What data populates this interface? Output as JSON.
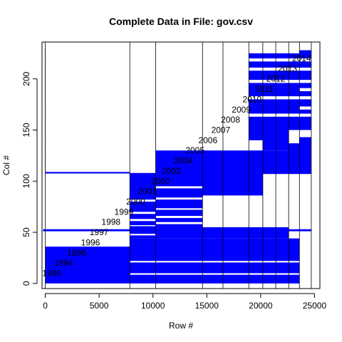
{
  "chart_data": {
    "type": "heatmap",
    "title": "Complete Data in File: gov.csv",
    "xlabel": "Row #",
    "ylabel": "Col #",
    "xlim": [
      0,
      25000
    ],
    "ylim": [
      0,
      230
    ],
    "x_ticks": [
      0,
      5000,
      10000,
      15000,
      20000,
      25000
    ],
    "y_ticks": [
      0,
      50,
      100,
      150,
      200
    ],
    "grid": "vertical year-boundary lines",
    "legend": "none",
    "fill_color": "#0000ff",
    "year_boundaries": [
      0,
      7850,
      10250,
      14600,
      16500,
      18900,
      20200,
      21400,
      22600,
      23600,
      24700
    ],
    "year_annotations": [
      {
        "label": "1990",
        "x": 600,
        "y": 10
      },
      {
        "label": "1994",
        "x": 1700,
        "y": 20
      },
      {
        "label": "1996",
        "x": 2900,
        "y": 30
      },
      {
        "label": "1996",
        "x": 4200,
        "y": 40
      },
      {
        "label": "1997",
        "x": 5000,
        "y": 50
      },
      {
        "label": "1998",
        "x": 6100,
        "y": 60
      },
      {
        "label": "1999",
        "x": 7300,
        "y": 70
      },
      {
        "label": "2000",
        "x": 8400,
        "y": 80
      },
      {
        "label": "2001",
        "x": 9500,
        "y": 90
      },
      {
        "label": "2002",
        "x": 10700,
        "y": 100
      },
      {
        "label": "2003",
        "x": 11700,
        "y": 110
      },
      {
        "label": "2004",
        "x": 12800,
        "y": 120
      },
      {
        "label": "2005",
        "x": 13900,
        "y": 130
      },
      {
        "label": "2006",
        "x": 15100,
        "y": 140
      },
      {
        "label": "2007",
        "x": 16300,
        "y": 150
      },
      {
        "label": "2008",
        "x": 17200,
        "y": 160
      },
      {
        "label": "2009",
        "x": 18200,
        "y": 170
      },
      {
        "label": "2010",
        "x": 19200,
        "y": 180
      },
      {
        "label": "2011",
        "x": 20300,
        "y": 190
      },
      {
        "label": "2012",
        "x": 21400,
        "y": 200
      },
      {
        "label": "2013",
        "x": 22500,
        "y": 210
      },
      {
        "label": "2014",
        "x": 23800,
        "y": 220
      }
    ],
    "blocks": [
      {
        "x0": 0,
        "x1": 7850,
        "y0": 0,
        "y1": 36
      },
      {
        "x0": 7850,
        "x1": 23600,
        "y0": 0,
        "y1": 44
      },
      {
        "x0": 7850,
        "x1": 10250,
        "y0": 44,
        "y1": 108
      },
      {
        "x0": 10250,
        "x1": 14600,
        "y0": 44,
        "y1": 130
      },
      {
        "x0": 14600,
        "x1": 20200,
        "y0": 44,
        "y1": 55
      },
      {
        "x0": 20200,
        "x1": 22600,
        "y0": 44,
        "y1": 55
      },
      {
        "x0": 14600,
        "x1": 20200,
        "y0": 86,
        "y1": 130
      },
      {
        "x0": 20200,
        "x1": 22600,
        "y0": 107,
        "y1": 130
      },
      {
        "x0": 22600,
        "x1": 23600,
        "y0": 107,
        "y1": 137
      },
      {
        "x0": 23600,
        "x1": 24700,
        "y0": 107,
        "y1": 143
      },
      {
        "x0": 20200,
        "x1": 21400,
        "y0": 130,
        "y1": 225
      },
      {
        "x0": 18900,
        "x1": 20200,
        "y0": 140,
        "y1": 225
      },
      {
        "x0": 21400,
        "x1": 22600,
        "y0": 130,
        "y1": 225
      },
      {
        "x0": 22600,
        "x1": 23600,
        "y0": 150,
        "y1": 225
      },
      {
        "x0": 23600,
        "x1": 24700,
        "y0": 150,
        "y1": 228
      },
      {
        "x0": -200,
        "x1": 24700,
        "y0": 51,
        "y1": 53
      },
      {
        "x0": 0,
        "x1": 7850,
        "y0": 107.5,
        "y1": 109
      }
    ],
    "gaps": [
      {
        "x0": 7850,
        "x1": 23600,
        "y0": 8.5,
        "y1": 10
      },
      {
        "x0": 7850,
        "x1": 23600,
        "y0": 20.5,
        "y1": 22
      },
      {
        "x0": 7850,
        "x1": 10250,
        "y0": 47,
        "y1": 48.5
      },
      {
        "x0": 7850,
        "x1": 10250,
        "y0": 56,
        "y1": 57
      },
      {
        "x0": 7850,
        "x1": 10250,
        "y0": 61,
        "y1": 63
      },
      {
        "x0": 7850,
        "x1": 10250,
        "y0": 68,
        "y1": 70
      },
      {
        "x0": 7850,
        "x1": 10250,
        "y0": 80,
        "y1": 82
      },
      {
        "x0": 10250,
        "x1": 14600,
        "y0": 58,
        "y1": 60
      },
      {
        "x0": 10250,
        "x1": 14600,
        "y0": 64,
        "y1": 66
      },
      {
        "x0": 10250,
        "x1": 14600,
        "y0": 72,
        "y1": 73.5
      },
      {
        "x0": 10250,
        "x1": 14600,
        "y0": 82,
        "y1": 84
      },
      {
        "x0": 10250,
        "x1": 14600,
        "y0": 93,
        "y1": 95
      },
      {
        "x0": 18900,
        "x1": 24700,
        "y0": 163,
        "y1": 166
      },
      {
        "x0": 18900,
        "x1": 24700,
        "y0": 180,
        "y1": 183
      },
      {
        "x0": 18900,
        "x1": 24700,
        "y0": 196,
        "y1": 199
      },
      {
        "x0": 18900,
        "x1": 24700,
        "y0": 208,
        "y1": 211
      },
      {
        "x0": 18900,
        "x1": 24700,
        "y0": 217,
        "y1": 220
      },
      {
        "x0": 23600,
        "x1": 24700,
        "y0": 170,
        "y1": 173
      },
      {
        "x0": 23600,
        "x1": 24700,
        "y0": 188,
        "y1": 191
      }
    ],
    "sparse_column": {
      "x": 0,
      "y_from": 109,
      "y_to": 230,
      "step": 2
    }
  }
}
